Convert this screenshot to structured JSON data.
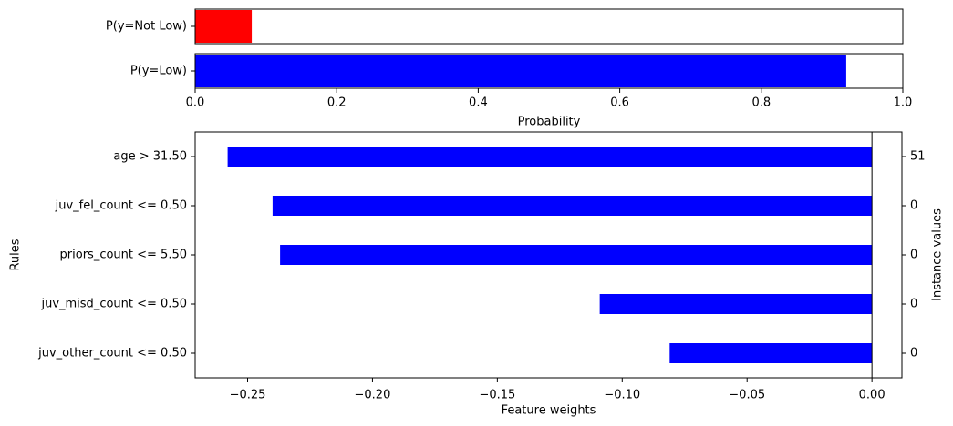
{
  "chart_data": [
    {
      "type": "bar",
      "orientation": "horizontal",
      "categories": [
        "P(y=Not Low)",
        "P(y=Low)"
      ],
      "values": [
        0.08,
        0.92
      ],
      "colors": [
        "#ff0000",
        "#0000ff"
      ],
      "xlabel": "Probability",
      "xlim": [
        0,
        1
      ],
      "xticks": [
        "0.0",
        "0.2",
        "0.4",
        "0.6",
        "0.8",
        "1.0"
      ],
      "tick_values": [
        0,
        0.2,
        0.4,
        0.6,
        0.8,
        1.0
      ]
    },
    {
      "type": "bar",
      "orientation": "horizontal",
      "categories": [
        "age > 31.50",
        "juv_fel_count <= 0.50",
        "priors_count <= 5.50",
        "juv_misd_count <= 0.50",
        "juv_other_count <= 0.50"
      ],
      "values": [
        -0.258,
        -0.24,
        -0.237,
        -0.109,
        -0.081
      ],
      "instance_values": [
        "51",
        "0",
        "0",
        "0",
        "0"
      ],
      "color": "#0000ff",
      "xlabel": "Feature weights",
      "ylabel": "Rules",
      "ylabel_right": "Instance values",
      "xlim": [
        -0.271,
        0.012
      ],
      "xticks": [
        "−0.25",
        "−0.20",
        "−0.15",
        "−0.10",
        "−0.05",
        "0.00"
      ],
      "tick_values": [
        -0.25,
        -0.2,
        -0.15,
        -0.1,
        -0.05,
        0.0
      ]
    }
  ]
}
